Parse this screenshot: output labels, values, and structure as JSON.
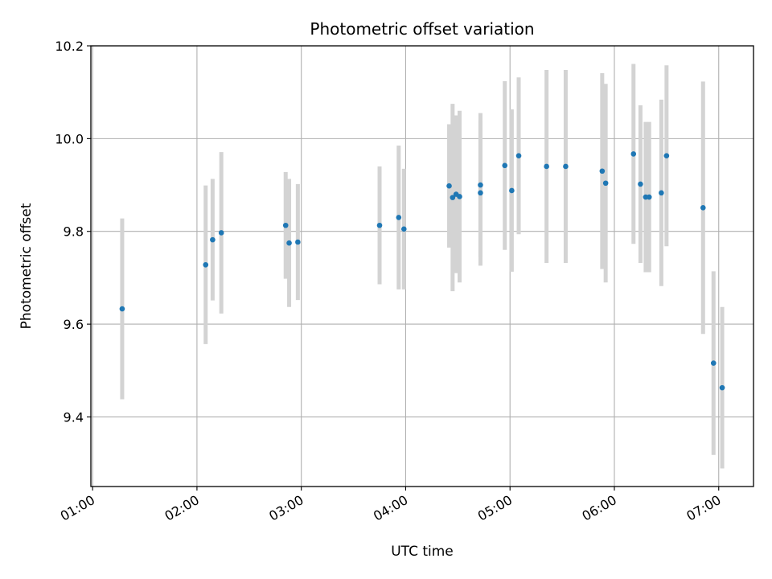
{
  "chart_data": {
    "type": "scatter",
    "title": "Photometric offset variation",
    "xlabel": "UTC time",
    "ylabel": "Photometric offset",
    "x_ticks": [
      "01:00",
      "02:00",
      "03:00",
      "04:00",
      "05:00",
      "06:00",
      "07:00"
    ],
    "y_ticks": [
      "9.4",
      "9.6",
      "9.8",
      "10.0",
      "10.2"
    ],
    "xlim": [
      "00:59",
      "07:20"
    ],
    "ylim": [
      9.25,
      10.2
    ],
    "grid": true,
    "errorbar_color": "#d3d3d3",
    "marker_color": "#1f77b4",
    "points": [
      {
        "x": "01:17",
        "y": 9.633,
        "yerr": 0.195
      },
      {
        "x": "02:05",
        "y": 9.728,
        "yerr": 0.171
      },
      {
        "x": "02:09",
        "y": 9.782,
        "yerr": 0.131
      },
      {
        "x": "02:14",
        "y": 9.797,
        "yerr": 0.174
      },
      {
        "x": "02:51",
        "y": 9.813,
        "yerr": 0.115
      },
      {
        "x": "02:53",
        "y": 9.775,
        "yerr": 0.138
      },
      {
        "x": "02:58",
        "y": 9.777,
        "yerr": 0.125
      },
      {
        "x": "03:45",
        "y": 9.813,
        "yerr": 0.127
      },
      {
        "x": "03:56",
        "y": 9.83,
        "yerr": 0.155
      },
      {
        "x": "03:59",
        "y": 9.805,
        "yerr": 0.13
      },
      {
        "x": "04:25",
        "y": 9.898,
        "yerr": 0.133
      },
      {
        "x": "04:27",
        "y": 9.873,
        "yerr": 0.202
      },
      {
        "x": "04:29",
        "y": 9.88,
        "yerr": 0.17
      },
      {
        "x": "04:31",
        "y": 9.875,
        "yerr": 0.185
      },
      {
        "x": "04:43",
        "y": 9.9,
        "yerr": 0.155
      },
      {
        "x": "04:43",
        "y": 9.883,
        "yerr": 0.157
      },
      {
        "x": "04:57",
        "y": 9.942,
        "yerr": 0.182
      },
      {
        "x": "05:01",
        "y": 9.888,
        "yerr": 0.175
      },
      {
        "x": "05:05",
        "y": 9.963,
        "yerr": 0.169
      },
      {
        "x": "05:21",
        "y": 9.94,
        "yerr": 0.208
      },
      {
        "x": "05:32",
        "y": 9.94,
        "yerr": 0.208
      },
      {
        "x": "05:53",
        "y": 9.93,
        "yerr": 0.211
      },
      {
        "x": "05:55",
        "y": 9.904,
        "yerr": 0.214
      },
      {
        "x": "06:11",
        "y": 9.967,
        "yerr": 0.194
      },
      {
        "x": "06:15",
        "y": 9.902,
        "yerr": 0.17
      },
      {
        "x": "06:18",
        "y": 9.874,
        "yerr": 0.162
      },
      {
        "x": "06:20",
        "y": 9.874,
        "yerr": 0.162
      },
      {
        "x": "06:27",
        "y": 9.883,
        "yerr": 0.201
      },
      {
        "x": "06:30",
        "y": 9.963,
        "yerr": 0.195
      },
      {
        "x": "06:51",
        "y": 9.851,
        "yerr": 0.272
      },
      {
        "x": "06:57",
        "y": 9.516,
        "yerr": 0.198
      },
      {
        "x": "07:02",
        "y": 9.463,
        "yerr": 0.174
      }
    ]
  }
}
